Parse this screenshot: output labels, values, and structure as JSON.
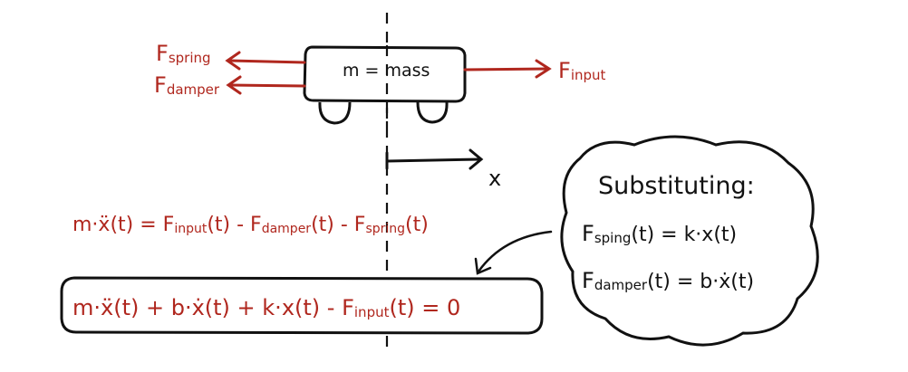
{
  "colors": {
    "ink": "#111111",
    "force": "#b0271e",
    "background": "#ffffff"
  },
  "cart": {
    "label": "m = mass",
    "position_axis": "x"
  },
  "forces": {
    "spring": {
      "main": "F",
      "sub": "spring"
    },
    "damper": {
      "main": "F",
      "sub": "damper"
    },
    "input": {
      "main": "F",
      "sub": "input"
    }
  },
  "equation1": {
    "lhs": "m·ẍ(t) = ",
    "f1": "F",
    "s1": "input",
    "t1": "(t) - ",
    "f2": "F",
    "s2": "damper",
    "t2": "(t) - ",
    "f3": "F",
    "s3": "spring",
    "t3": "(t)"
  },
  "equation2": {
    "lhs": "m·ẍ(t) + b·ẋ(t) + k·x(t) - ",
    "f": "F",
    "s": "input",
    "rhs": "(t) = 0"
  },
  "bubble": {
    "title": "Substituting:",
    "line1": {
      "f": "F",
      "s": "sping",
      "rhs": "(t) = k·x(t)"
    },
    "line2": {
      "f": "F",
      "s": "damper",
      "rhs": "(t) = b·ẋ(t)"
    }
  }
}
